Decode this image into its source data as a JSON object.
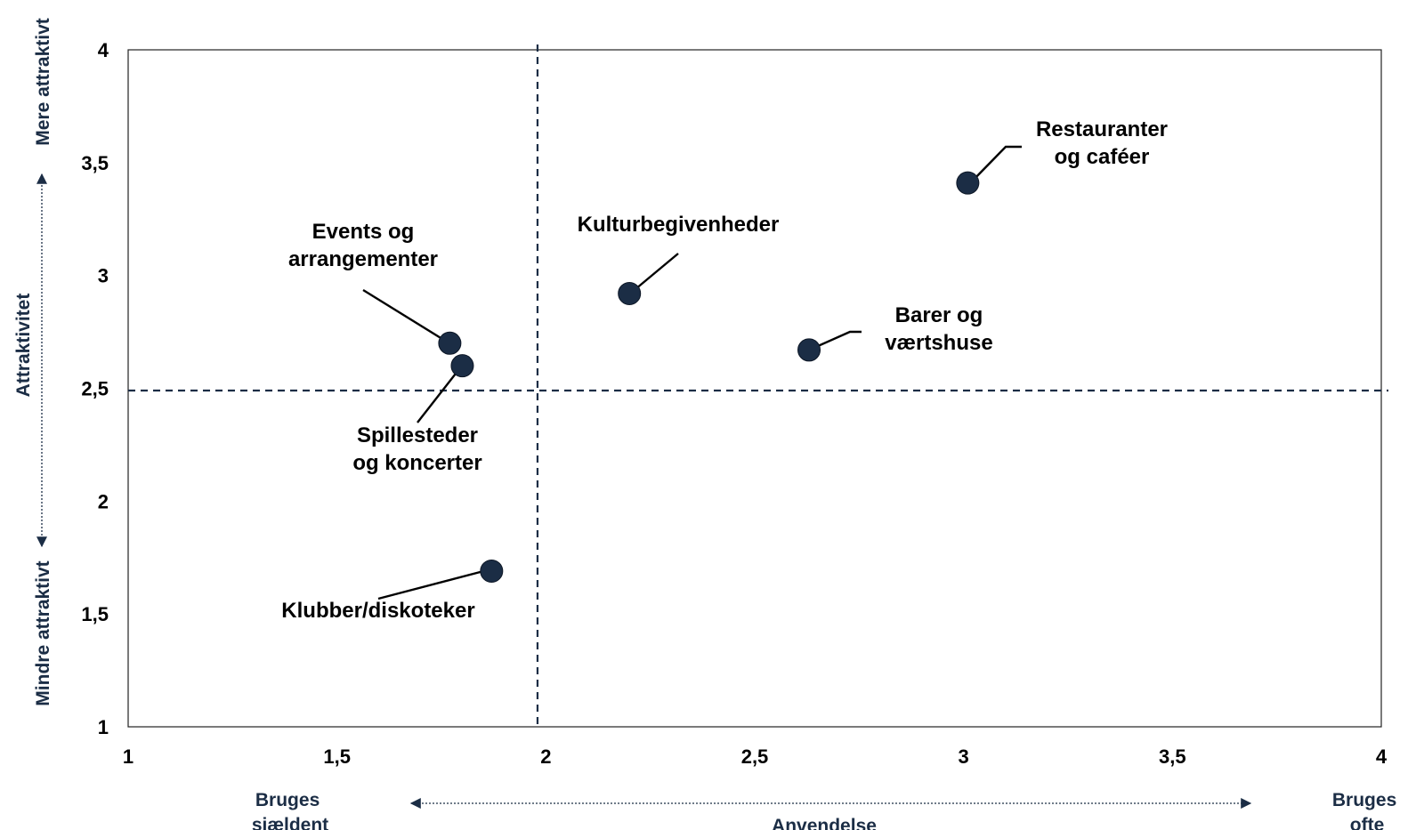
{
  "chart_data": {
    "type": "scatter",
    "title": "",
    "xlabel": "Anvendelse",
    "ylabel": "Attraktivitet",
    "xlim": [
      1,
      4
    ],
    "ylim": [
      1,
      4
    ],
    "x_ticks": [
      "1",
      "1,5",
      "2",
      "2,5",
      "3",
      "3,5",
      "4"
    ],
    "y_ticks": [
      "1",
      "1,5",
      "2",
      "2,5",
      "3",
      "3,5",
      "4"
    ],
    "x_ends": {
      "left": [
        "Bruges",
        "sjældent"
      ],
      "right": [
        "Bruges",
        "ofte"
      ]
    },
    "y_ends": {
      "top": "Mere attraktivt",
      "bottom": "Mindre attraktivt"
    },
    "reference_lines": {
      "x": 1.98,
      "y": 2.49
    },
    "grid": false,
    "legend": "none",
    "colors": {
      "point": "#1b2d45",
      "reference": "#1b2d45"
    },
    "points": [
      {
        "x": 3.01,
        "y": 3.41,
        "label": [
          "Restauranter",
          "og caféer"
        ]
      },
      {
        "x": 2.2,
        "y": 2.92,
        "label": [
          "Kulturbegivenheder"
        ]
      },
      {
        "x": 2.63,
        "y": 2.67,
        "label": [
          "Barer og",
          "værtshuse"
        ]
      },
      {
        "x": 1.77,
        "y": 2.7,
        "label": [
          "Events og",
          "arrangementer"
        ]
      },
      {
        "x": 1.8,
        "y": 2.6,
        "label": [
          "Spillesteder",
          "og koncerter"
        ]
      },
      {
        "x": 1.87,
        "y": 1.69,
        "label": [
          "Klubber/diskoteker"
        ]
      }
    ]
  }
}
